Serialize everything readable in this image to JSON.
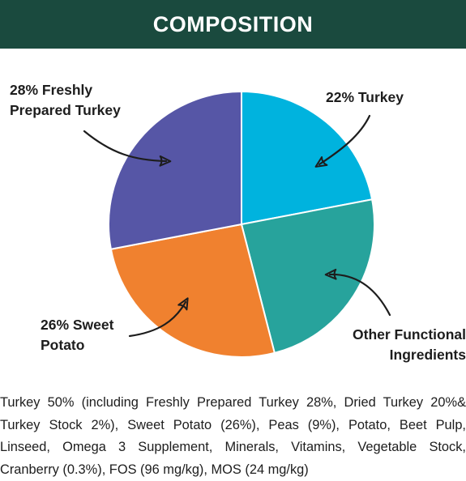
{
  "header": {
    "title": "COMPOSITION",
    "background": "#1a4a3e"
  },
  "chart_data": {
    "type": "pie",
    "slices": [
      {
        "label_lines": [
          "22% Turkey"
        ],
        "value": 22,
        "color": "#00b3de"
      },
      {
        "label_lines": [
          "Other Functional",
          "Ingredients"
        ],
        "value": 24,
        "color": "#27a39c"
      },
      {
        "label_lines": [
          "26% Sweet",
          "Potato"
        ],
        "value": 26,
        "color": "#f0812f"
      },
      {
        "label_lines": [
          "28% Freshly",
          "Prepared Turkey"
        ],
        "value": 28,
        "color": "#5656a6"
      }
    ],
    "start": "12 o'clock",
    "direction": "clockwise",
    "legend": "none"
  },
  "description": "Turkey 50% (including Freshly Prepared Turkey 28%, Dried Turkey 20%& Turkey Stock 2%), Sweet Potato (26%), Peas (9%), Potato, Beet Pulp, Linseed, Omega 3 Supplement, Minerals, Vitamins, Vegetable Stock, Cranberry (0.3%), FOS (96 mg/kg), MOS (24 mg/kg)"
}
